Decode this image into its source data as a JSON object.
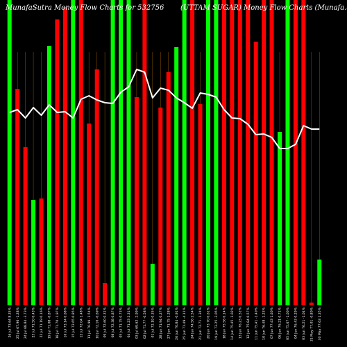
{
  "header": {
    "left_title": "MunafaSutra  Money Flow  Charts for 532756",
    "right_title": "(UTTAM SUGAR)  Money Flow  Charts (Munafa.com)"
  },
  "chart_data": {
    "type": "bar",
    "colors": {
      "up": "#00ff00",
      "down": "#ff0000",
      "line": "#ffffff",
      "grid": "#7a4a00",
      "background": "#000000"
    },
    "categories": [
      "26 Jul 73.64 8.35%",
      "25 Jul 67.96 -1.28%",
      "24 Jul 68.84 -3.73%",
      "23 Jul 71.50 0.43%",
      "22 Jul 71.19 0.16%",
      "19 Jul 71.08 -0.87%",
      "18 Jul 71.70 -1.97%",
      "16 Jul 73.14 0.68%",
      "15 Jul 72.65 0.85%",
      "12 Jul 72.04 1.48%",
      "11 Jul 70.99 -1.54%",
      "10 Jul 72.10 -0.69%",
      "09 Jul 72.60 0.31%",
      "08 Jul 72.38 0.87%",
      "05 Jul 71.75 0.73%",
      "04 Jul 71.23 2.31%",
      "03 Jul 69.62 -2.99%",
      "02 Jul 71.77 -0.58%",
      "01 Jul 72.19 0.35%",
      "28 Jun 71.94 0.27%",
      "27 Jun 71.75 1.28%",
      "26 Jun 70.84 -0.91%",
      "25 Jun 71.49 -4.11%",
      "24 Jun 74.56 2.54%",
      "21 Jun 72.71 -1.34%",
      "20 Jun 73.70 0.61%",
      "19 Jun 73.25 -3.05%",
      "18 Jun 75.56 0.14%",
      "14 Jun 75.45 -1.02%",
      "13 Jun 76.23 0.52%",
      "12 Jun 75.84 0.57%",
      "11 Jun 75.41 -1.40%",
      "10 Jun 76.48 -1.23%",
      "07 Jun 77.43 1.60%",
      "06 Jun 76.21 0.71%",
      "05 Jun 75.67 -1.00%",
      "04 Jun 76.43 0.29%",
      "03 Jun 76.21 -1.04%",
      "31 May 77.01 -0.80%",
      "30 May 77.63 1.35%"
    ],
    "series": [
      {
        "values": [
          440,
          312,
          228,
          152,
          154,
          374,
          412,
          430,
          440,
          440,
          262,
          340,
          32,
          440,
          440,
          440,
          300,
          440,
          60,
          285,
          336,
          372,
          440,
          440,
          290,
          440,
          440,
          440,
          440,
          440,
          440,
          380,
          440,
          440,
          250,
          440,
          440,
          440,
          4,
          66
        ],
        "up": [
          true,
          false,
          false,
          true,
          false,
          true,
          false,
          false,
          true,
          false,
          false,
          false,
          false,
          true,
          true,
          true,
          false,
          false,
          true,
          false,
          false,
          true,
          true,
          false,
          false,
          true,
          true,
          false,
          false,
          false,
          false,
          false,
          false,
          false,
          true,
          true,
          false,
          false,
          false,
          true
        ]
      },
      {
        "values": [
          278,
          282,
          270,
          285,
          274,
          289,
          278,
          279,
          270,
          297,
          302,
          296,
          292,
          291,
          307,
          315,
          340,
          336,
          299,
          313,
          310,
          299,
          292,
          284,
          306,
          304,
          300,
          282,
          270,
          269,
          261,
          246,
          247,
          242,
          226,
          226,
          232,
          259,
          254,
          254
        ],
        "name": ""
      }
    ],
    "ylim": [
      0,
      440
    ],
    "grid": true
  }
}
